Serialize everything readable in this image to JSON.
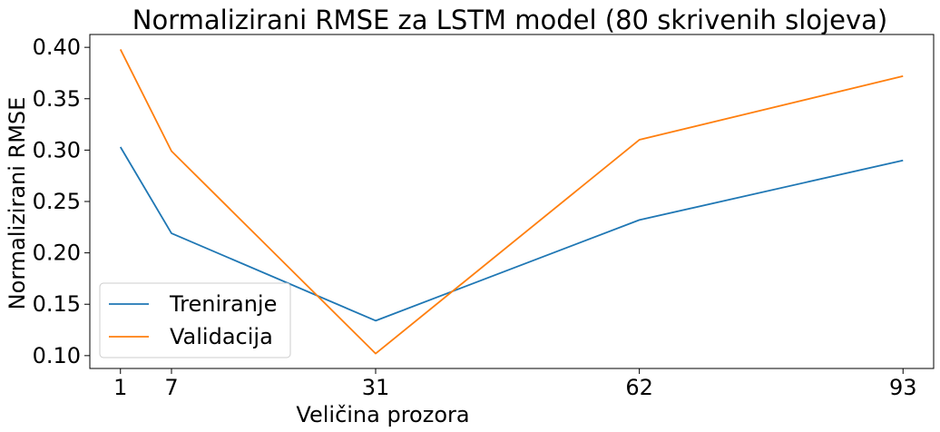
{
  "chart_data": {
    "type": "line",
    "title": "Normalizirani RMSE za LSTM model (80 skrivenih slojeva)",
    "xlabel": "Veličina prozora",
    "ylabel": "Normalizirani RMSE",
    "x": [
      1,
      7,
      31,
      62,
      93
    ],
    "xticks": [
      1,
      7,
      31,
      62,
      93
    ],
    "xlim": [
      -2.6,
      96.6
    ],
    "yticks": [
      0.1,
      0.15,
      0.2,
      0.25,
      0.3,
      0.35,
      0.4
    ],
    "ytick_labels": [
      "0.10",
      "0.15",
      "0.20",
      "0.25",
      "0.30",
      "0.35",
      "0.40"
    ],
    "ylim": [
      0.0875,
      0.4125
    ],
    "grid": false,
    "legend_position": "lower-left",
    "series": [
      {
        "name": "Treniranje",
        "color": "#1f77b4",
        "values": [
          0.303,
          0.219,
          0.134,
          0.232,
          0.29
        ]
      },
      {
        "name": "Validacija",
        "color": "#ff7f0e",
        "values": [
          0.398,
          0.299,
          0.102,
          0.31,
          0.372
        ]
      }
    ]
  }
}
